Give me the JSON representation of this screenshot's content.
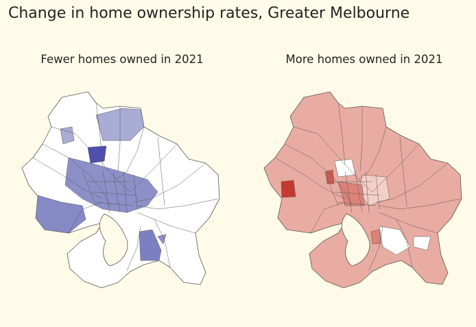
{
  "title": "Change in home ownership rates, Greater Melbourne",
  "panels": [
    {
      "title": "Fewer homes owned in 2021"
    },
    {
      "title": "More homes owned in 2021"
    }
  ]
}
